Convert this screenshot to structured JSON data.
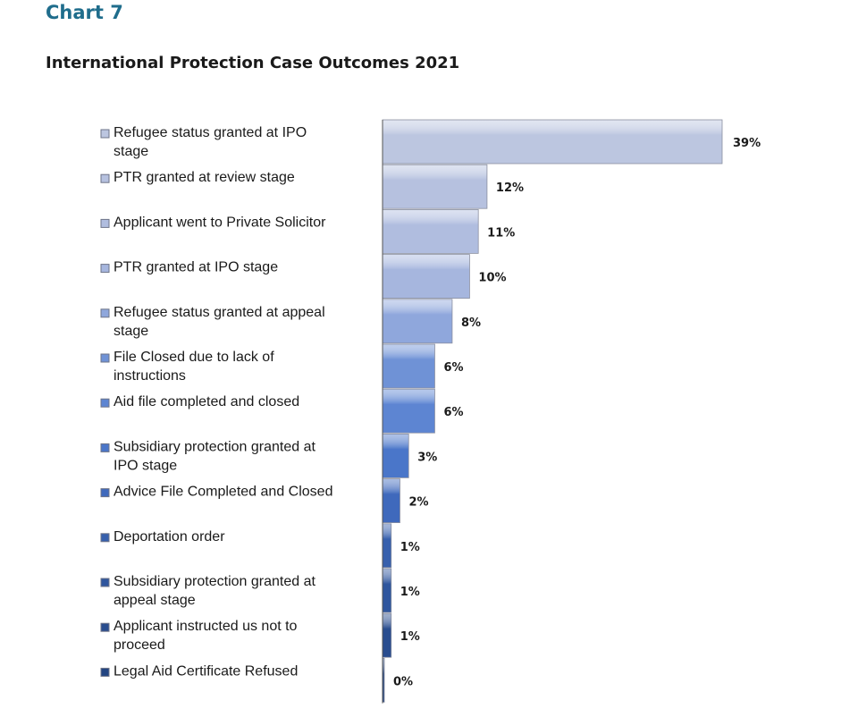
{
  "header": {
    "kicker": "Chart 7",
    "title": "International Protection Case Outcomes 2021"
  },
  "chart_data": {
    "type": "bar",
    "orientation": "horizontal",
    "title": "International Protection Case Outcomes 2021",
    "categories": [
      [
        "Refugee status granted at IPO",
        "stage"
      ],
      [
        "PTR granted at review stage"
      ],
      [
        "Applicant went to Private Solicitor"
      ],
      [
        "PTR granted at IPO stage"
      ],
      [
        "Refugee status granted at appeal",
        "stage"
      ],
      [
        "File Closed due to lack of",
        "instructions"
      ],
      [
        "Aid file completed and closed"
      ],
      [
        "Subsidiary protection granted at",
        "IPO stage"
      ],
      [
        "Advice File Completed and Closed"
      ],
      [
        "Deportation order"
      ],
      [
        "Subsidiary protection granted at",
        "appeal stage"
      ],
      [
        "Applicant instructed us not to",
        "proceed"
      ],
      [
        "Legal Aid Certificate Refused"
      ]
    ],
    "values": [
      39,
      12,
      11,
      10,
      8,
      6,
      6,
      3,
      2,
      1,
      1,
      1,
      0
    ],
    "value_labels": [
      "39%",
      "12%",
      "11%",
      "10%",
      "8%",
      "6%",
      "6%",
      "3%",
      "2%",
      "1%",
      "1%",
      "1%",
      "0%"
    ],
    "unit": "%",
    "colors": [
      "#bcc6e0",
      "#b6c1df",
      "#b0bddf",
      "#a6b6de",
      "#8fa7dc",
      "#6f92d6",
      "#5d85d2",
      "#4a76c9",
      "#3f69bc",
      "#3760ad",
      "#2f569e",
      "#294d8f",
      "#234582"
    ],
    "legend": "left",
    "grid": false
  }
}
